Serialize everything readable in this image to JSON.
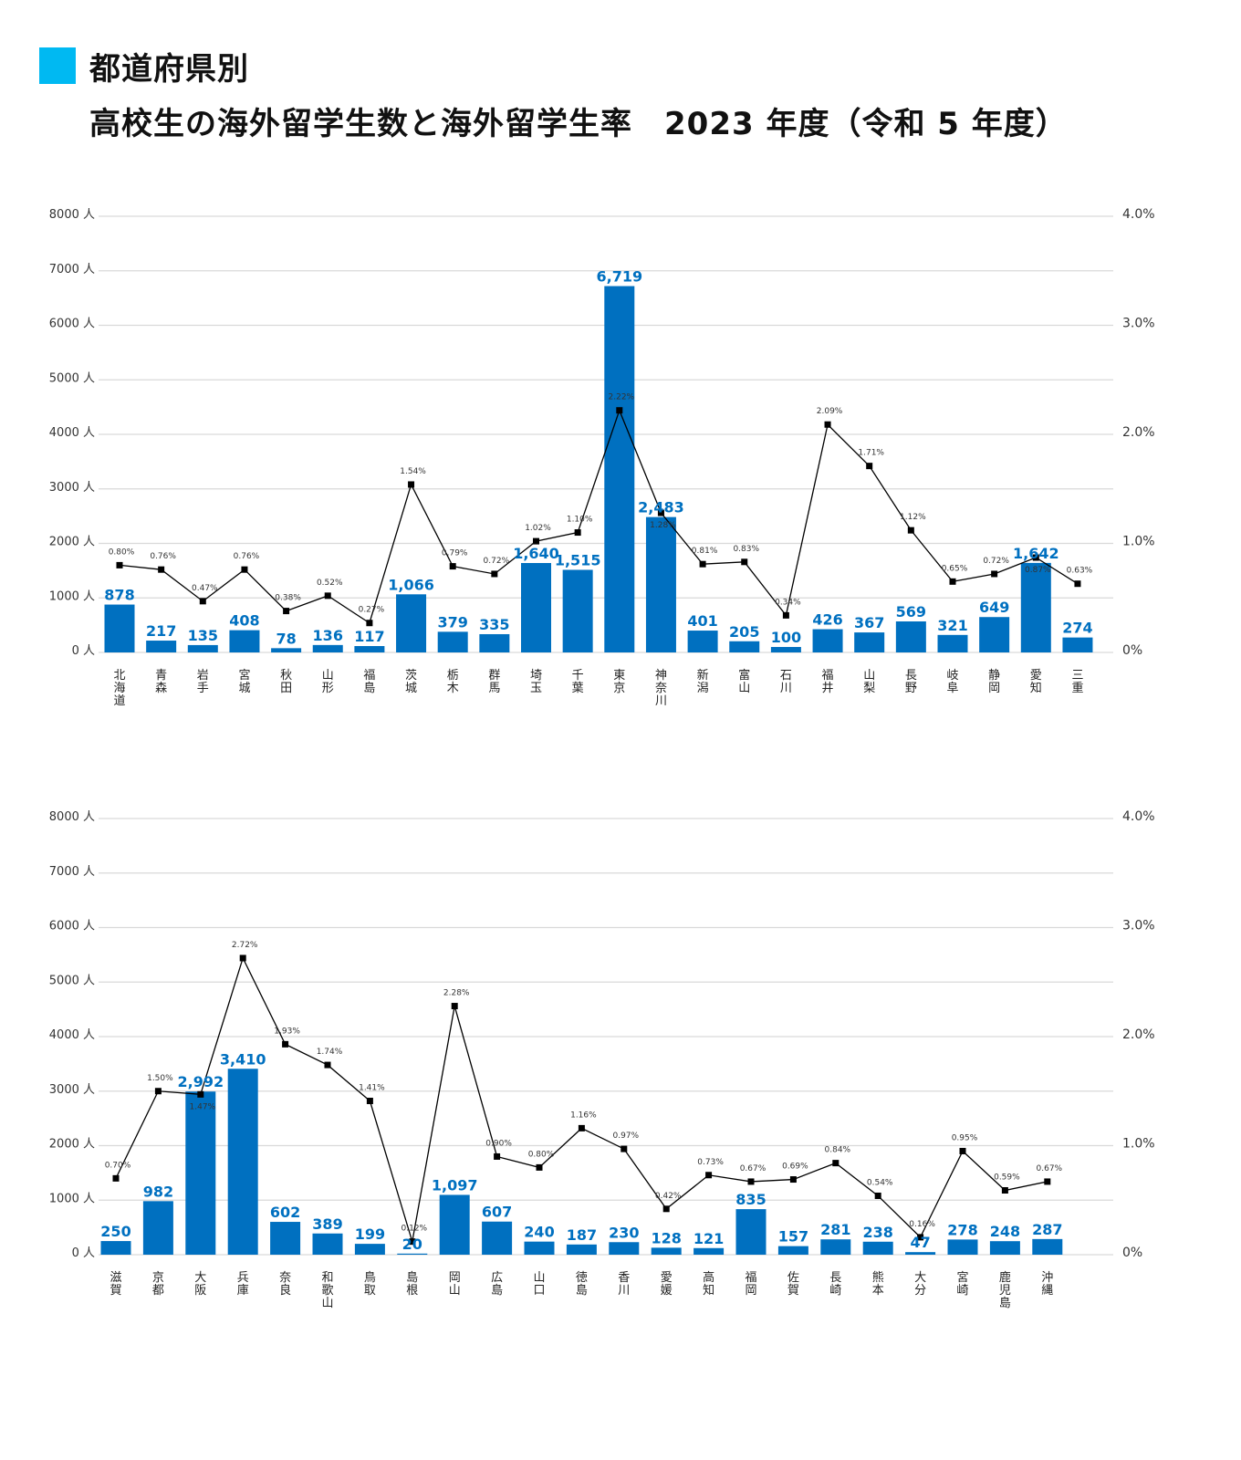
{
  "title": {
    "line1": "都道府県別",
    "line2": "高校生の海外留学生数と海外留学生率　2023 年度（令和 5 年度）"
  },
  "colors": {
    "bar": "#0070c0",
    "bar_label": "#0070c0",
    "line": "#000000",
    "title_mark": "#00b9f2",
    "grid": "#d9d9d9"
  },
  "chart_data": [
    {
      "type": "bar+line",
      "left_axis": {
        "ticks": [
          "0 人",
          "1000 人",
          "2000 人",
          "3000 人",
          "4000 人",
          "5000 人",
          "6000 人",
          "7000 人",
          "8000 人"
        ],
        "range": [
          0,
          8000
        ],
        "unit": "人"
      },
      "right_axis": {
        "ticks": [
          "0%",
          "1.0%",
          "2.0%",
          "3.0%",
          "4.0%"
        ],
        "range": [
          0,
          4.0
        ],
        "unit": "%"
      },
      "grid": true,
      "categories": [
        "北海道",
        "青森",
        "岩手",
        "宮城",
        "秋田",
        "山形",
        "福島",
        "茨城",
        "栃木",
        "群馬",
        "埼玉",
        "千葉",
        "東京",
        "神奈川",
        "新潟",
        "富山",
        "石川",
        "福井",
        "山梨",
        "長野",
        "岐阜",
        "静岡",
        "愛知",
        "三重"
      ],
      "series": [
        {
          "name": "海外留学生数",
          "type": "bar",
          "values": [
            878,
            217,
            135,
            408,
            78,
            136,
            117,
            1066,
            379,
            335,
            1640,
            1515,
            6719,
            2483,
            401,
            205,
            100,
            426,
            367,
            569,
            321,
            649,
            1642,
            274
          ]
        },
        {
          "name": "海外留学生率",
          "type": "line",
          "axis": "right",
          "values": [
            0.8,
            0.76,
            0.47,
            0.76,
            0.38,
            0.52,
            0.27,
            1.54,
            0.79,
            0.72,
            1.02,
            1.1,
            2.22,
            1.28,
            0.81,
            0.83,
            0.34,
            2.09,
            1.71,
            1.12,
            0.65,
            0.72,
            0.87,
            0.63
          ]
        }
      ]
    },
    {
      "type": "bar+line",
      "left_axis": {
        "ticks": [
          "0 人",
          "1000 人",
          "2000 人",
          "3000 人",
          "4000 人",
          "5000 人",
          "6000 人",
          "7000 人",
          "8000 人"
        ],
        "range": [
          0,
          8000
        ],
        "unit": "人"
      },
      "right_axis": {
        "ticks": [
          "0%",
          "1.0%",
          "2.0%",
          "3.0%",
          "4.0%"
        ],
        "range": [
          0,
          4.0
        ],
        "unit": "%"
      },
      "grid": true,
      "categories": [
        "滋賀",
        "京都",
        "大阪",
        "兵庫",
        "奈良",
        "和歌山",
        "鳥取",
        "島根",
        "岡山",
        "広島",
        "山口",
        "徳島",
        "香川",
        "愛媛",
        "高知",
        "福岡",
        "佐賀",
        "長崎",
        "熊本",
        "大分",
        "宮崎",
        "鹿児島",
        "沖縄"
      ],
      "series": [
        {
          "name": "海外留学生数",
          "type": "bar",
          "values": [
            250,
            982,
            2992,
            3410,
            602,
            389,
            199,
            20,
            1097,
            607,
            240,
            187,
            230,
            128,
            121,
            835,
            157,
            281,
            238,
            47,
            278,
            248,
            287
          ]
        },
        {
          "name": "海外留学生率",
          "type": "line",
          "axis": "right",
          "values": [
            0.7,
            1.5,
            1.47,
            2.72,
            1.93,
            1.74,
            1.41,
            0.12,
            2.28,
            0.9,
            0.8,
            1.16,
            0.97,
            0.42,
            0.73,
            0.67,
            0.69,
            0.84,
            0.54,
            0.16,
            0.95,
            0.59,
            0.67
          ]
        }
      ]
    }
  ]
}
